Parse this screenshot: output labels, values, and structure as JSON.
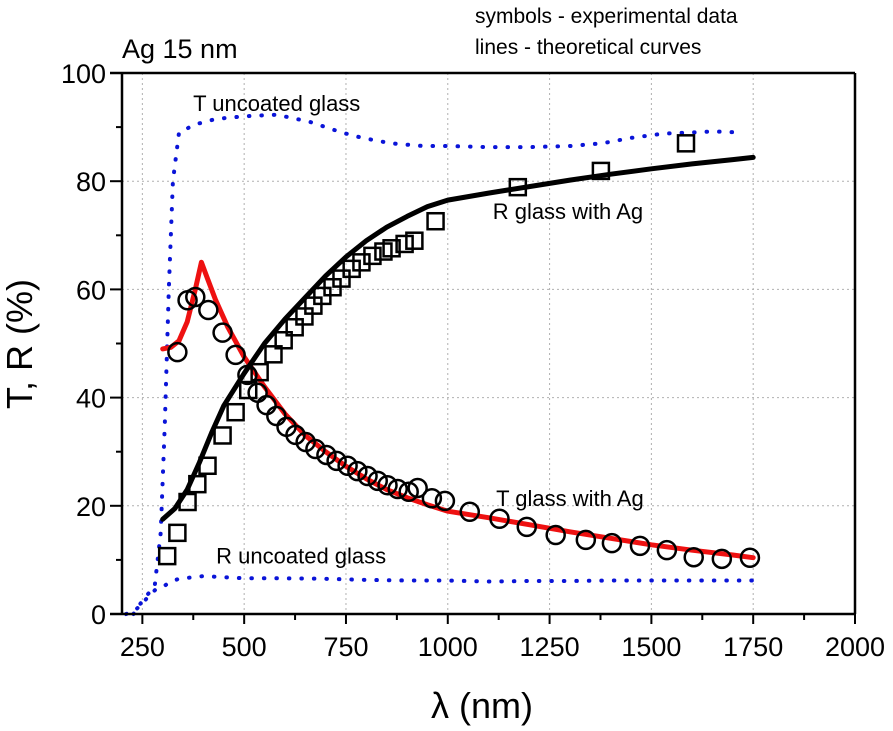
{
  "chart_data": {
    "type": "scatter",
    "title": "Ag 15 nm",
    "notes": [
      "symbols - experimental data",
      "lines - theoretical curves"
    ],
    "xlabel": "λ (nm)",
    "ylabel": "T, R (%)",
    "xlim": [
      200,
      2000
    ],
    "ylim": [
      0,
      100
    ],
    "xticks": [
      250,
      500,
      750,
      1000,
      1250,
      1500,
      1750,
      2000
    ],
    "xtick_labels": [
      "250",
      "500",
      "750",
      "1000",
      "1250",
      "1500",
      "1750",
      "2000"
    ],
    "xminor": [
      375,
      625,
      875,
      1125,
      1375,
      1625,
      1875
    ],
    "yticks": [
      0,
      20,
      40,
      60,
      80,
      100
    ],
    "ytick_labels": [
      "0",
      "20",
      "40",
      "60",
      "80",
      "100"
    ],
    "yminor": [
      10,
      30,
      50,
      70,
      90
    ],
    "grid": true,
    "colors": {
      "theory_T": "#ee1111",
      "theory_R": "#000000",
      "uncoated": "#0a14d8",
      "markers": "#000000",
      "grid": "#b0b0b0"
    },
    "annotations": [
      {
        "text": "T uncoated glass",
        "x": 580,
        "y": 93
      },
      {
        "text": "R glass with Ag",
        "x": 1295,
        "y": 73
      },
      {
        "text": "T glass with Ag",
        "x": 1300,
        "y": 20
      },
      {
        "text": "R uncoated glass",
        "x": 640,
        "y": 9.3
      }
    ],
    "series": [
      {
        "name": "T uncoated glass",
        "kind": "theory-dotted",
        "x": [
          228,
          255,
          280,
          295,
          305,
          315,
          325,
          340,
          380,
          430,
          500,
          580,
          660,
          740,
          790,
          860,
          940,
          1000,
          1100,
          1200,
          1300,
          1380,
          1450,
          1530,
          1600,
          1650,
          1720
        ],
        "y": [
          0,
          3,
          5,
          15,
          35,
          60,
          80,
          89,
          90.5,
          91.5,
          92,
          92.3,
          91,
          89,
          88,
          87,
          86.5,
          86.5,
          86.3,
          86.3,
          86.5,
          87,
          88,
          88.8,
          89,
          89.2,
          89
        ]
      },
      {
        "name": "R uncoated glass",
        "kind": "theory-dotted",
        "x": [
          210,
          228,
          245,
          262,
          282,
          300,
          320,
          340,
          400,
          450,
          500,
          600,
          700,
          800,
          900,
          1000,
          1100,
          1200,
          1300,
          1400,
          1500,
          1600,
          1700,
          1750
        ],
        "y": [
          0,
          0.5,
          1.5,
          3,
          4.5,
          5,
          6,
          6.5,
          7,
          6.8,
          6.6,
          6.6,
          6.5,
          6.3,
          6.2,
          6.2,
          6.0,
          6.1,
          6.1,
          6.2,
          6.2,
          6.2,
          6.2,
          6.2
        ]
      },
      {
        "name": "T glass with Ag (theory)",
        "kind": "theory-solid",
        "x": [
          300,
          320,
          340,
          360,
          380,
          395,
          410,
          430,
          460,
          500,
          550,
          600,
          650,
          700,
          750,
          800,
          850,
          900,
          950,
          1000,
          1100,
          1200,
          1300,
          1400,
          1500,
          1600,
          1700,
          1750
        ],
        "y": [
          49,
          49.3,
          50.5,
          54,
          60,
          65,
          62,
          58,
          53,
          47.5,
          42,
          37,
          33,
          30,
          27.3,
          25,
          23,
          21.5,
          20.2,
          19,
          17.8,
          16.5,
          15.2,
          14,
          12.8,
          11.8,
          10.9,
          10.4
        ]
      },
      {
        "name": "R glass with Ag (theory)",
        "kind": "theory-solid",
        "x": [
          300,
          330,
          360,
          390,
          420,
          450,
          500,
          550,
          600,
          650,
          700,
          750,
          800,
          850,
          900,
          950,
          1000,
          1100,
          1200,
          1300,
          1400,
          1500,
          1600,
          1700,
          1750
        ],
        "y": [
          17.5,
          19.5,
          23,
          28,
          33.5,
          38.5,
          44.5,
          50,
          54.5,
          58.5,
          62.5,
          66,
          69,
          71.5,
          73.5,
          75.3,
          76.5,
          77.8,
          79,
          80.2,
          81.3,
          82.3,
          83.2,
          84,
          84.4
        ]
      },
      {
        "name": "R glass with Ag (experimental)",
        "kind": "marker-square",
        "x": [
          311,
          336,
          361,
          385,
          410,
          447,
          479,
          510,
          538,
          572,
          597,
          624,
          648,
          670,
          692,
          717,
          739,
          764,
          788,
          815,
          842,
          862,
          894,
          918,
          970,
          1172,
          1376,
          1585
        ],
        "y": [
          10.7,
          15,
          20.7,
          24,
          27.4,
          33,
          37.3,
          41.4,
          44.7,
          48,
          50.6,
          53,
          55,
          57,
          58.8,
          60.4,
          62,
          63.8,
          65,
          66.2,
          67,
          67.6,
          68.4,
          69,
          72.6,
          78.9,
          81.9,
          87
        ]
      },
      {
        "name": "T glass with Ag (experimental)",
        "kind": "marker-circle",
        "x": [
          336,
          361,
          380,
          412,
          447,
          479,
          508,
          533,
          555,
          579,
          604,
          626,
          651,
          675,
          702,
          727,
          754,
          778,
          803,
          828,
          852,
          877,
          904,
          926,
          961,
          993,
          1054,
          1127,
          1194,
          1265,
          1339,
          1403,
          1472,
          1538,
          1604,
          1673,
          1742
        ],
        "y": [
          48.4,
          58,
          58.6,
          56.2,
          52,
          47.9,
          44.2,
          40.9,
          38.6,
          36.6,
          34.6,
          33.1,
          31.8,
          30.5,
          29.4,
          28.3,
          27.4,
          26.4,
          25.5,
          24.6,
          23.8,
          23.1,
          22.6,
          23.3,
          21.4,
          20.9,
          18.9,
          17.6,
          16.1,
          14.6,
          13.7,
          13.1,
          12.6,
          11.8,
          10.5,
          10.2,
          10.4
        ]
      }
    ]
  }
}
